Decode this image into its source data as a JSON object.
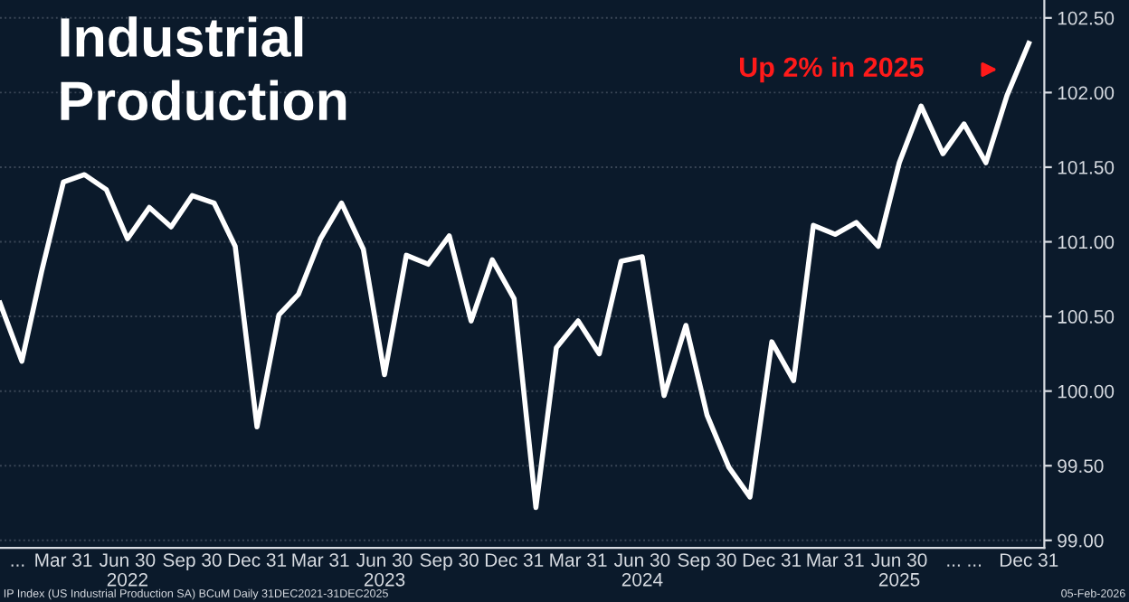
{
  "chart_data": {
    "type": "line",
    "title": "Industrial\nProduction",
    "x": [
      "2021-12-31",
      "2022-01-31",
      "2022-02-28",
      "2022-03-31",
      "2022-04-30",
      "2022-05-31",
      "2022-06-30",
      "2022-07-31",
      "2022-08-31",
      "2022-09-30",
      "2022-10-31",
      "2022-11-30",
      "2022-12-31",
      "2023-01-31",
      "2023-02-28",
      "2023-03-31",
      "2023-04-30",
      "2023-05-31",
      "2023-06-30",
      "2023-07-31",
      "2023-08-31",
      "2023-09-30",
      "2023-10-31",
      "2023-11-30",
      "2023-12-31",
      "2024-01-31",
      "2024-02-29",
      "2024-03-31",
      "2024-04-30",
      "2024-05-31",
      "2024-06-30",
      "2024-07-31",
      "2024-08-31",
      "2024-09-30",
      "2024-10-31",
      "2024-11-30",
      "2024-12-31",
      "2025-01-31",
      "2025-02-28",
      "2025-03-31",
      "2025-04-30",
      "2025-05-31",
      "2025-06-30",
      "2025-07-31",
      "2025-08-31",
      "2025-09-30",
      "2025-10-31",
      "2025-11-30",
      "2025-12-31"
    ],
    "series": [
      {
        "color": "#ffffff",
        "values": [
          100.59,
          100.2,
          100.8,
          101.4,
          101.45,
          101.35,
          101.02,
          101.23,
          101.1,
          101.31,
          101.26,
          100.97,
          99.76,
          100.51,
          100.65,
          101.02,
          101.26,
          100.95,
          100.11,
          100.91,
          100.85,
          101.04,
          100.47,
          100.88,
          100.62,
          99.22,
          100.29,
          100.47,
          100.25,
          100.87,
          100.9,
          99.97,
          100.44,
          99.84,
          99.49,
          99.29,
          100.33,
          100.07,
          101.11,
          101.05,
          101.13,
          100.97,
          101.53,
          101.91,
          101.59,
          101.79,
          101.53,
          101.98,
          102.33
        ]
      }
    ],
    "xlim": [
      "2021-12-31",
      "2026-01-22"
    ],
    "xticks": [
      {
        "value": "2022-01-25",
        "label": "..."
      },
      {
        "value": "2022-03-31",
        "label": "Mar 31"
      },
      {
        "value": "2022-06-30",
        "label": "Jun 30"
      },
      {
        "value": "2022-09-30",
        "label": "Sep 30"
      },
      {
        "value": "2022-12-31",
        "label": "Dec 31"
      },
      {
        "value": "2023-03-31",
        "label": "Mar 31"
      },
      {
        "value": "2023-06-30",
        "label": "Jun 30"
      },
      {
        "value": "2023-09-30",
        "label": "Sep 30"
      },
      {
        "value": "2023-12-31",
        "label": "Dec 31"
      },
      {
        "value": "2024-03-31",
        "label": "Mar 31"
      },
      {
        "value": "2024-06-30",
        "label": "Jun 30"
      },
      {
        "value": "2024-09-30",
        "label": "Sep 30"
      },
      {
        "value": "2024-12-31",
        "label": "Dec 31"
      },
      {
        "value": "2025-03-31",
        "label": "Mar 31"
      },
      {
        "value": "2025-06-30",
        "label": "Jun 30"
      },
      {
        "value": "2025-09-30",
        "label": "... ..."
      },
      {
        "value": "2025-12-31",
        "label": "Dec 31"
      }
    ],
    "x2lim": [
      "2021-12-31",
      "2026-01-22"
    ],
    "x2ticks": [
      {
        "value": "2022-06-30",
        "label": "2022"
      },
      {
        "value": "2023-06-30",
        "label": "2023"
      },
      {
        "value": "2024-06-30",
        "label": "2024"
      },
      {
        "value": "2025-06-30",
        "label": "2025"
      }
    ],
    "ylim": [
      98.95,
      102.62
    ],
    "yticks": [
      {
        "value": 99.0,
        "label": "99.00"
      },
      {
        "value": 99.5,
        "label": "99.50"
      },
      {
        "value": 100.0,
        "label": "100.00"
      },
      {
        "value": 100.5,
        "label": "100.50"
      },
      {
        "value": 101.0,
        "label": "101.00"
      },
      {
        "value": 101.5,
        "label": "101.50"
      },
      {
        "value": 102.0,
        "label": "102.00"
      },
      {
        "value": 102.5,
        "label": "102.50"
      }
    ],
    "grid": "y",
    "legend": false,
    "marker": "none",
    "line_style": "solid",
    "annotations": [
      "Up 2% in 2025",
      "IP Index (US Industrial Production SA) BCuM Daily 31DEC2021-31DEC2025",
      "05-Feb-2026"
    ]
  }
}
